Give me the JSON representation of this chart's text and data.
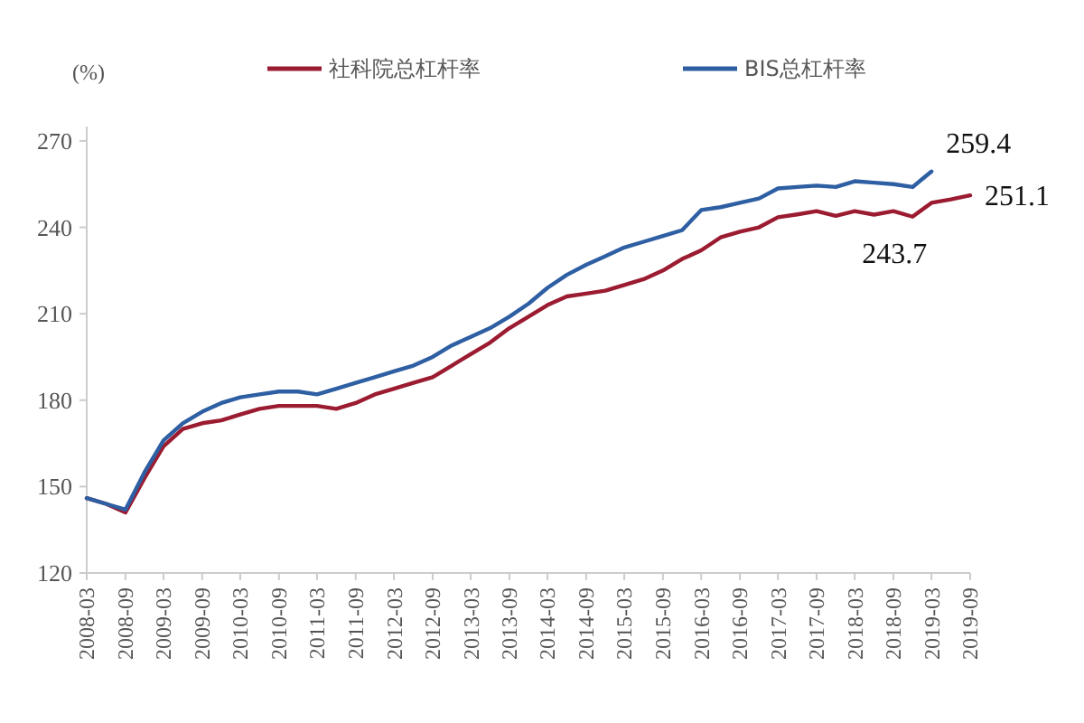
{
  "chart_data": {
    "type": "line",
    "ylabel": "(%)",
    "legend": "top",
    "grid": false,
    "marker": "none",
    "line_style": "solid",
    "x": [
      "2008-03",
      "2008-06",
      "2008-09",
      "2008-12",
      "2009-03",
      "2009-06",
      "2009-09",
      "2009-12",
      "2010-03",
      "2010-06",
      "2010-09",
      "2010-12",
      "2011-03",
      "2011-06",
      "2011-09",
      "2011-12",
      "2012-03",
      "2012-06",
      "2012-09",
      "2012-12",
      "2013-03",
      "2013-06",
      "2013-09",
      "2013-12",
      "2014-03",
      "2014-06",
      "2014-09",
      "2014-12",
      "2015-03",
      "2015-06",
      "2015-09",
      "2015-12",
      "2016-03",
      "2016-06",
      "2016-09",
      "2016-12",
      "2017-03",
      "2017-06",
      "2017-09",
      "2017-12",
      "2018-03",
      "2018-06",
      "2018-09",
      "2018-12",
      "2019-03",
      "2019-06",
      "2019-09"
    ],
    "series": [
      {
        "name": "社科院总杠杆率",
        "color": "#9b1b30",
        "values": [
          146,
          144,
          141,
          153,
          164,
          170,
          172,
          173,
          175,
          177,
          178,
          178,
          178,
          177,
          179,
          182,
          184,
          186,
          188,
          192,
          196,
          200,
          205,
          209,
          213,
          216,
          217,
          218,
          220,
          222,
          225,
          229,
          232,
          236.5,
          238.5,
          240,
          243.5,
          244.5,
          245.6,
          244,
          245.6,
          244.4,
          245.6,
          243.7,
          248.5,
          249.7,
          251.1
        ]
      },
      {
        "name": "BIS总杠杆率",
        "color": "#2e5fa3",
        "values": [
          146,
          144,
          142,
          155,
          166,
          172,
          176,
          179,
          181,
          182,
          183,
          183,
          182,
          184,
          186,
          188,
          190,
          192,
          195,
          199,
          202,
          205,
          209,
          213.5,
          219,
          223.5,
          227,
          230,
          233,
          235,
          237,
          239,
          246,
          247,
          248.5,
          250,
          253.5,
          254,
          254.5,
          254,
          256,
          255.5,
          255,
          254,
          259.4,
          null,
          null
        ]
      }
    ],
    "xlim": [
      "2008-03",
      "2019-09"
    ],
    "xticks": [
      "2008-03",
      "2008-09",
      "2009-03",
      "2009-09",
      "2010-03",
      "2010-09",
      "2011-03",
      "2011-09",
      "2012-03",
      "2012-09",
      "2013-03",
      "2013-09",
      "2014-03",
      "2014-09",
      "2015-03",
      "2015-09",
      "2016-03",
      "2016-09",
      "2017-03",
      "2017-09",
      "2018-03",
      "2018-09",
      "2019-03",
      "2019-09"
    ],
    "ylim": [
      120,
      275
    ],
    "yticks": [
      120,
      150,
      180,
      210,
      240,
      270
    ],
    "annotations": [
      {
        "text": "259.4",
        "x": "2019-03",
        "y": 259.4
      },
      {
        "text": "251.1",
        "x": "2019-09",
        "y": 251.1
      },
      {
        "text": "243.7",
        "x": "2018-12",
        "y": 243.7
      }
    ]
  }
}
